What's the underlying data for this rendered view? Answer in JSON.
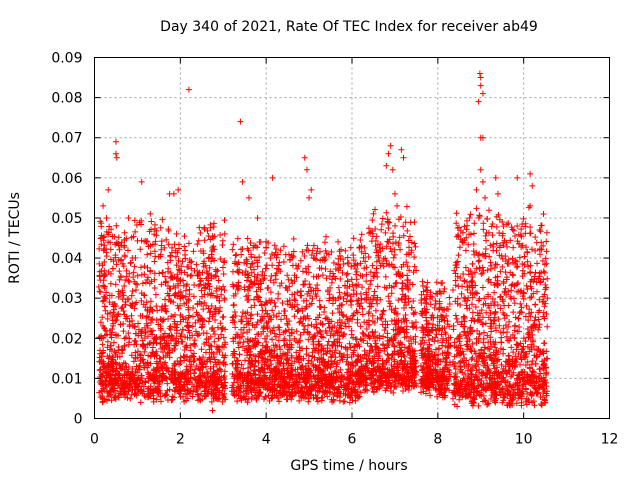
{
  "chart_data": {
    "type": "scatter",
    "title": "Day 340 of 2021, Rate Of TEC Index for receiver ab49",
    "xlabel": "GPS time / hours",
    "ylabel": "ROTI / TECUs",
    "xlim": [
      0,
      12
    ],
    "ylim": [
      0,
      0.09
    ],
    "xticks": [
      0,
      2,
      4,
      6,
      8,
      10,
      12
    ],
    "xtick_labels": [
      "0",
      "2",
      "4",
      "6",
      "8",
      "10",
      "12"
    ],
    "yticks": [
      0,
      0.01,
      0.02,
      0.03,
      0.04,
      0.05,
      0.06,
      0.07,
      0.08,
      0.09
    ],
    "ytick_labels": [
      "0",
      "0.01",
      "0.02",
      "0.03",
      "0.04",
      "0.05",
      "0.06",
      "0.07",
      "0.08",
      "0.09"
    ],
    "grid": true,
    "marker": "+",
    "series": [
      {
        "name": "ROTI",
        "color": "#ff0000",
        "x_range": [
          0.1,
          10.55
        ],
        "notable_points": [
          {
            "x": 0.2,
            "y": 0.053
          },
          {
            "x": 0.28,
            "y": 0.05
          },
          {
            "x": 0.32,
            "y": 0.057
          },
          {
            "x": 0.5,
            "y": 0.069
          },
          {
            "x": 0.5,
            "y": 0.066
          },
          {
            "x": 0.52,
            "y": 0.065
          },
          {
            "x": 1.1,
            "y": 0.059
          },
          {
            "x": 1.3,
            "y": 0.051
          },
          {
            "x": 1.75,
            "y": 0.056
          },
          {
            "x": 1.85,
            "y": 0.056
          },
          {
            "x": 1.95,
            "y": 0.057
          },
          {
            "x": 2.2,
            "y": 0.082
          },
          {
            "x": 3.4,
            "y": 0.074
          },
          {
            "x": 3.45,
            "y": 0.059
          },
          {
            "x": 3.6,
            "y": 0.055
          },
          {
            "x": 3.8,
            "y": 0.05
          },
          {
            "x": 4.15,
            "y": 0.06
          },
          {
            "x": 4.9,
            "y": 0.065
          },
          {
            "x": 4.95,
            "y": 0.062
          },
          {
            "x": 5.0,
            "y": 0.055
          },
          {
            "x": 5.05,
            "y": 0.057
          },
          {
            "x": 6.5,
            "y": 0.051
          },
          {
            "x": 6.55,
            "y": 0.043
          },
          {
            "x": 6.8,
            "y": 0.063
          },
          {
            "x": 6.85,
            "y": 0.066
          },
          {
            "x": 6.9,
            "y": 0.068
          },
          {
            "x": 6.95,
            "y": 0.062
          },
          {
            "x": 7.0,
            "y": 0.056
          },
          {
            "x": 7.05,
            "y": 0.053
          },
          {
            "x": 7.15,
            "y": 0.067
          },
          {
            "x": 7.2,
            "y": 0.065
          },
          {
            "x": 8.98,
            "y": 0.086
          },
          {
            "x": 9.0,
            "y": 0.085
          },
          {
            "x": 9.0,
            "y": 0.083
          },
          {
            "x": 9.05,
            "y": 0.081
          },
          {
            "x": 8.95,
            "y": 0.079
          },
          {
            "x": 9.0,
            "y": 0.07
          },
          {
            "x": 9.05,
            "y": 0.07
          },
          {
            "x": 9.0,
            "y": 0.062
          },
          {
            "x": 9.05,
            "y": 0.059
          },
          {
            "x": 8.9,
            "y": 0.057
          },
          {
            "x": 9.1,
            "y": 0.055
          },
          {
            "x": 9.35,
            "y": 0.06
          },
          {
            "x": 9.4,
            "y": 0.056
          },
          {
            "x": 9.5,
            "y": 0.049
          },
          {
            "x": 9.85,
            "y": 0.06
          },
          {
            "x": 10.15,
            "y": 0.061
          },
          {
            "x": 10.2,
            "y": 0.058
          },
          {
            "x": 10.15,
            "y": 0.053
          },
          {
            "x": 2.75,
            "y": 0.002
          },
          {
            "x": 8.45,
            "y": 0.003
          },
          {
            "x": 5.95,
            "y": 0.004
          },
          {
            "x": 10.55,
            "y": 0.03
          },
          {
            "x": 10.55,
            "y": 0.015
          }
        ],
        "bulk": {
          "description_of_density": "dense band of points between ~0.005 and ~0.03 across the full time range",
          "segments": [
            {
              "x_start": 0.1,
              "x_end": 3.05,
              "y_low": 0.004,
              "y_high": 0.045
            },
            {
              "x_start": 3.2,
              "x_end": 6.2,
              "y_low": 0.004,
              "y_high": 0.04
            },
            {
              "x_start": 6.2,
              "x_end": 7.5,
              "y_low": 0.006,
              "y_high": 0.047
            },
            {
              "x_start": 7.6,
              "x_end": 8.3,
              "y_low": 0.005,
              "y_high": 0.03
            },
            {
              "x_start": 8.35,
              "x_end": 10.55,
              "y_low": 0.003,
              "y_high": 0.047
            }
          ]
        }
      }
    ]
  }
}
